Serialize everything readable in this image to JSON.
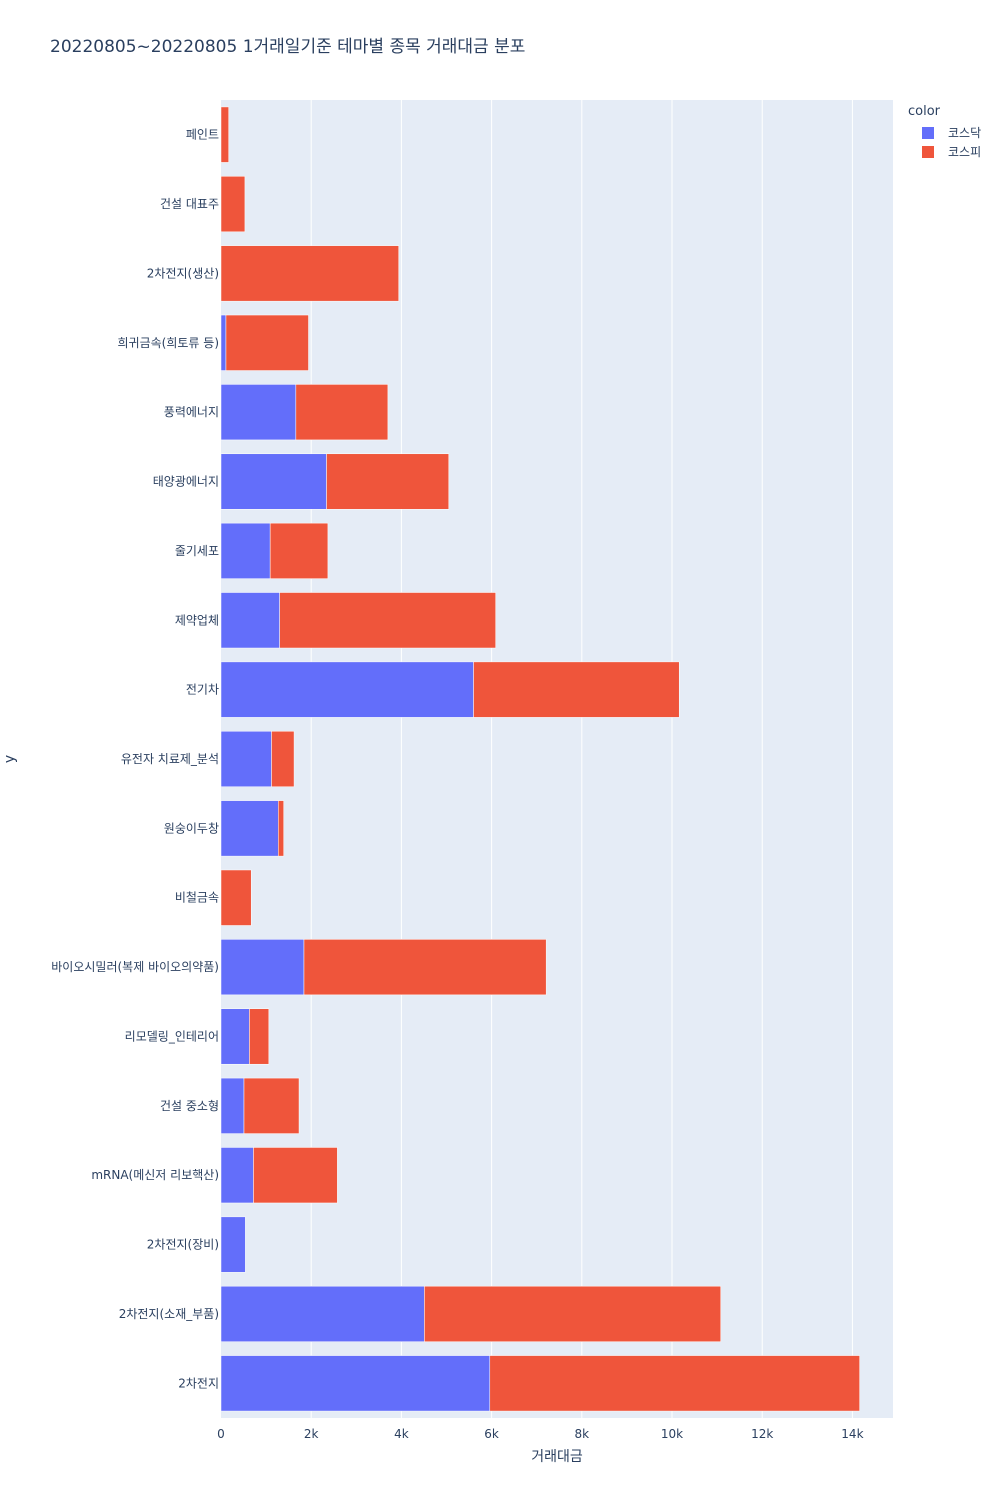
{
  "chart_data": {
    "type": "bar",
    "orientation": "horizontal",
    "barmode": "stack",
    "title": "20220805~20220805 1거래일기준 테마별 종목 거래대금 분포",
    "xlabel": "거래대금",
    "ylabel": "y",
    "xlim": [
      0,
      14900
    ],
    "x_ticks": [
      {
        "value": 0,
        "label": "0"
      },
      {
        "value": 2000,
        "label": "2k"
      },
      {
        "value": 4000,
        "label": "4k"
      },
      {
        "value": 6000,
        "label": "6k"
      },
      {
        "value": 8000,
        "label": "8k"
      },
      {
        "value": 10000,
        "label": "10k"
      },
      {
        "value": 12000,
        "label": "12k"
      },
      {
        "value": 14000,
        "label": "14k"
      }
    ],
    "grid": true,
    "legend_title": "color",
    "legend_position": "top-right",
    "categories": [
      "페인트",
      "건설 대표주",
      "2차전지(생산)",
      "희귀금속(희토류 등)",
      "풍력에너지",
      "태양광에너지",
      "줄기세포",
      "제약업체",
      "전기차",
      "유전자 치료제_분석",
      "원숭이두창",
      "비철금속",
      "바이오시밀러(복제 바이오의약품)",
      "리모델링_인테리어",
      "건설 중소형",
      "mRNA(메신저 리보핵산)",
      "2차전지(장비)",
      "2차전지(소재_부품)",
      "2차전지"
    ],
    "series": [
      {
        "name": "코스닥",
        "color": "#636efa",
        "values": [
          0,
          0,
          0,
          110,
          1660,
          2340,
          1090,
          1300,
          5600,
          1120,
          1270,
          0,
          1840,
          630,
          510,
          720,
          540,
          4510,
          5960
        ]
      },
      {
        "name": "코스피",
        "color": "#ef553b",
        "values": [
          170,
          530,
          3940,
          1830,
          2040,
          2710,
          1280,
          4790,
          4560,
          500,
          120,
          670,
          5370,
          430,
          1220,
          1860,
          0,
          6570,
          8200
        ]
      }
    ]
  }
}
